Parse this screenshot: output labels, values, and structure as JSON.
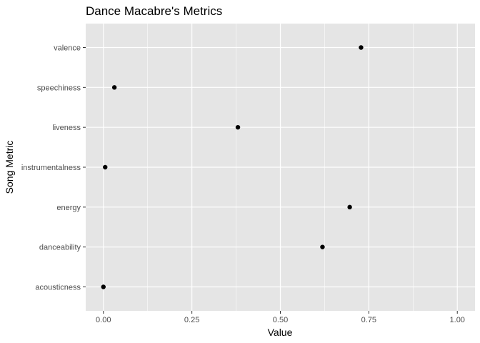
{
  "chart_data": {
    "type": "scatter",
    "title": "Dance Macabre's Metrics",
    "xlabel": "Value",
    "ylabel": "Song Metric",
    "xlim": [
      0,
      1
    ],
    "x_ticks": [
      "0.00",
      "0.25",
      "0.50",
      "0.75",
      "1.00"
    ],
    "x_tick_values": [
      0,
      0.25,
      0.5,
      0.75,
      1.0
    ],
    "categories": [
      "acousticness",
      "danceability",
      "energy",
      "instrumentalness",
      "liveness",
      "speechiness",
      "valence"
    ],
    "values": [
      0.0,
      0.619,
      0.696,
      0.005,
      0.38,
      0.031,
      0.728
    ],
    "grid": true,
    "legend": "none",
    "colors": {
      "panel": "#e5e5e5",
      "grid_major": "#ffffff",
      "point": "#000000",
      "tick": "#4d4d4d"
    }
  }
}
